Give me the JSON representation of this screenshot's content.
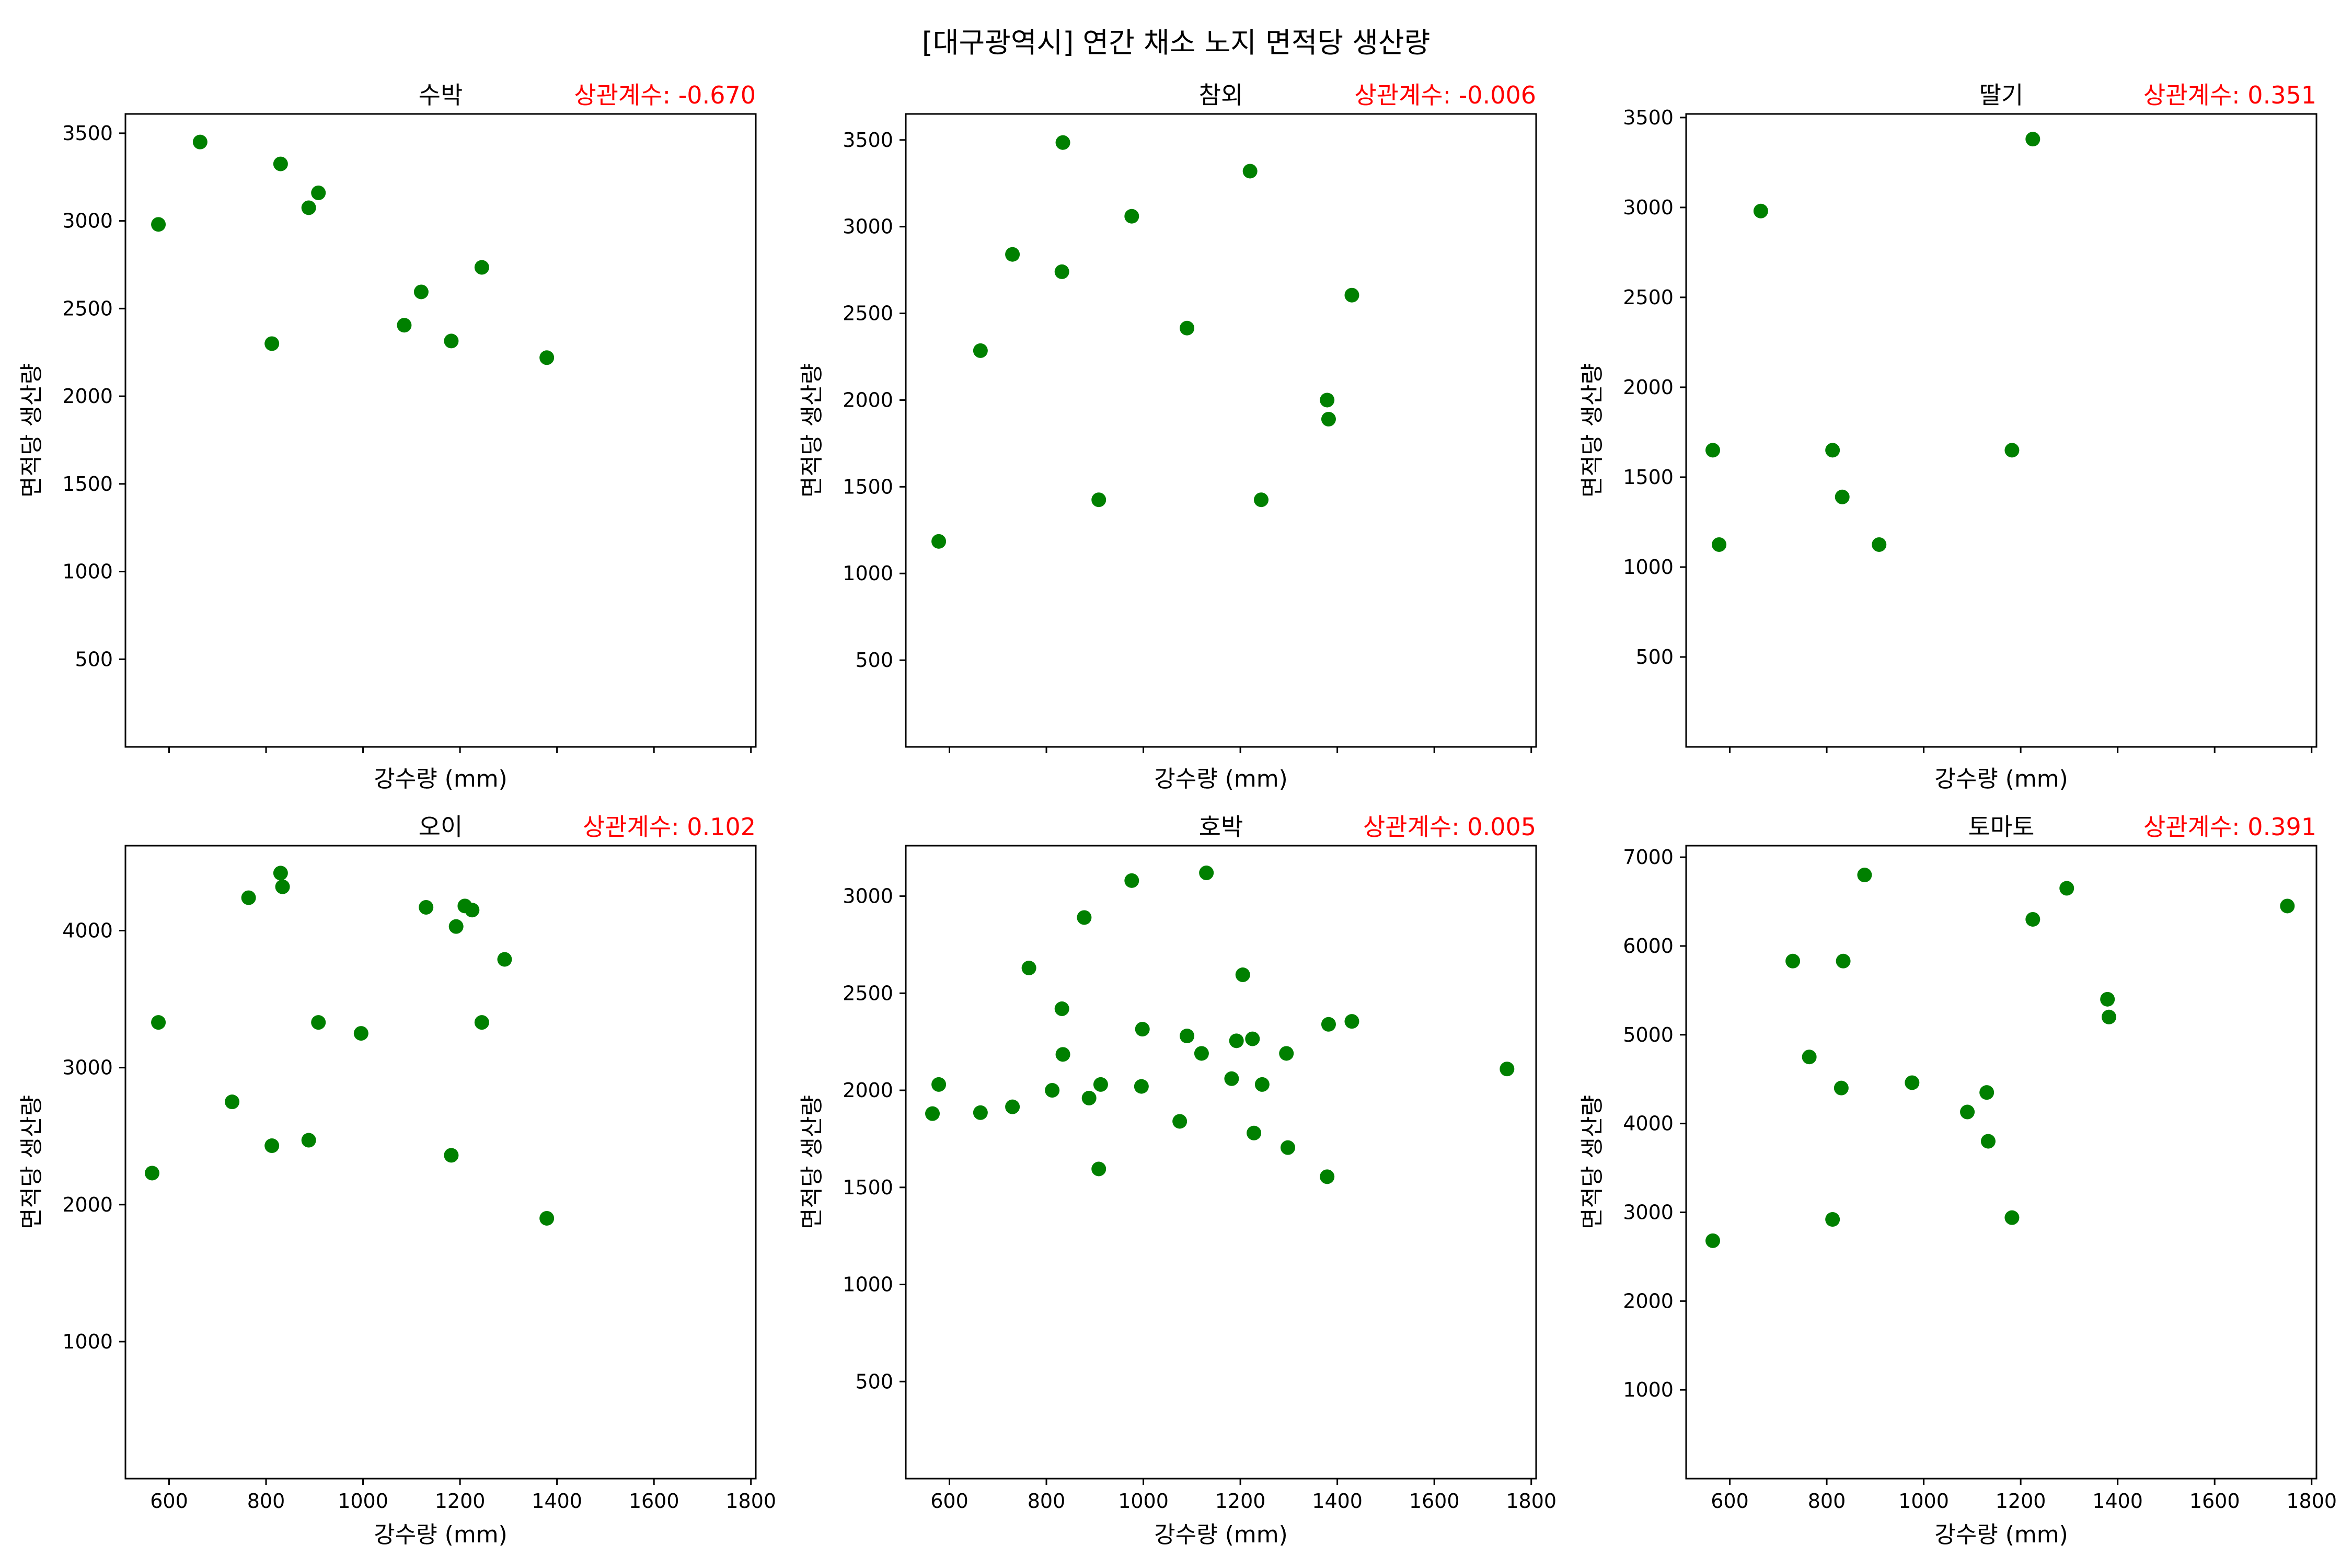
{
  "suptitle": "[대구광역시] 연간 채소 노지 면적당 생산량",
  "chart_data": [
    {
      "type": "scatter",
      "title": "수박",
      "annotation": "상관계수: -0.670",
      "xlabel": "강수량 (mm)",
      "ylabel": "면적당 생산량",
      "xlim": [
        510,
        1810
      ],
      "ylim": [
        0,
        3610
      ],
      "xticks": [
        600,
        800,
        1000,
        1200,
        1400,
        1600,
        1800
      ],
      "yticks": [
        500,
        1000,
        1500,
        2000,
        2500,
        3000,
        3500
      ],
      "show_xtick_labels": false,
      "marker_color": "#008000",
      "points": [
        [
          578,
          2980
        ],
        [
          664,
          3450
        ],
        [
          812,
          2300
        ],
        [
          830,
          3325
        ],
        [
          888,
          3075
        ],
        [
          908,
          3160
        ],
        [
          1085,
          2405
        ],
        [
          1120,
          2595
        ],
        [
          1182,
          2315
        ],
        [
          1245,
          2735
        ],
        [
          1379,
          2220
        ]
      ]
    },
    {
      "type": "scatter",
      "title": "참외",
      "annotation": "상관계수: -0.006",
      "xlabel": "강수량 (mm)",
      "ylabel": "면적당 생산량",
      "xlim": [
        510,
        1810
      ],
      "ylim": [
        0,
        3650
      ],
      "xticks": [
        600,
        800,
        1000,
        1200,
        1400,
        1600,
        1800
      ],
      "yticks": [
        500,
        1000,
        1500,
        2000,
        2500,
        3000,
        3500
      ],
      "show_xtick_labels": false,
      "marker_color": "#008000",
      "points": [
        [
          578,
          1185
        ],
        [
          664,
          2285
        ],
        [
          730,
          2840
        ],
        [
          832,
          2740
        ],
        [
          834,
          3485
        ],
        [
          908,
          1425
        ],
        [
          976,
          3060
        ],
        [
          1090,
          2415
        ],
        [
          1220,
          3320
        ],
        [
          1243,
          1425
        ],
        [
          1379,
          2000
        ],
        [
          1382,
          1890
        ],
        [
          1430,
          2605
        ]
      ]
    },
    {
      "type": "scatter",
      "title": "딸기",
      "annotation": "상관계수: 0.351",
      "xlabel": "강수량 (mm)",
      "ylabel": "면적당 생산량",
      "xlim": [
        510,
        1810
      ],
      "ylim": [
        0,
        3520
      ],
      "xticks": [
        600,
        800,
        1000,
        1200,
        1400,
        1600,
        1800
      ],
      "yticks": [
        500,
        1000,
        1500,
        2000,
        2500,
        3000,
        3500
      ],
      "show_xtick_labels": false,
      "marker_color": "#008000",
      "points": [
        [
          565,
          1650
        ],
        [
          578,
          1125
        ],
        [
          664,
          2980
        ],
        [
          812,
          1650
        ],
        [
          832,
          1390
        ],
        [
          908,
          1125
        ],
        [
          1182,
          1650
        ],
        [
          1225,
          3380
        ]
      ]
    },
    {
      "type": "scatter",
      "title": "오이",
      "annotation": "상관계수: 0.102",
      "xlabel": "강수량 (mm)",
      "ylabel": "면적당 생산량",
      "xlim": [
        510,
        1810
      ],
      "ylim": [
        0,
        4620
      ],
      "xticks": [
        600,
        800,
        1000,
        1200,
        1400,
        1600,
        1800
      ],
      "yticks": [
        1000,
        2000,
        3000,
        4000
      ],
      "show_xtick_labels": true,
      "marker_color": "#008000",
      "points": [
        [
          565,
          2230
        ],
        [
          578,
          3330
        ],
        [
          730,
          2750
        ],
        [
          764,
          4240
        ],
        [
          812,
          2430
        ],
        [
          830,
          4420
        ],
        [
          834,
          4320
        ],
        [
          888,
          2470
        ],
        [
          908,
          3330
        ],
        [
          996,
          3250
        ],
        [
          1130,
          4170
        ],
        [
          1182,
          2360
        ],
        [
          1192,
          4030
        ],
        [
          1210,
          4180
        ],
        [
          1225,
          4150
        ],
        [
          1245,
          3330
        ],
        [
          1292,
          3790
        ],
        [
          1379,
          1900
        ]
      ]
    },
    {
      "type": "scatter",
      "title": "호박",
      "annotation": "상관계수: 0.005",
      "xlabel": "강수량 (mm)",
      "ylabel": "면적당 생산량",
      "xlim": [
        510,
        1810
      ],
      "ylim": [
        0,
        3260
      ],
      "xticks": [
        600,
        800,
        1000,
        1200,
        1400,
        1600,
        1800
      ],
      "yticks": [
        500,
        1000,
        1500,
        2000,
        2500,
        3000
      ],
      "show_xtick_labels": true,
      "marker_color": "#008000",
      "points": [
        [
          565,
          1880
        ],
        [
          578,
          2030
        ],
        [
          664,
          1885
        ],
        [
          730,
          1915
        ],
        [
          764,
          2630
        ],
        [
          812,
          2000
        ],
        [
          832,
          2420
        ],
        [
          834,
          2185
        ],
        [
          878,
          2890
        ],
        [
          888,
          1960
        ],
        [
          908,
          1595
        ],
        [
          912,
          2030
        ],
        [
          976,
          3080
        ],
        [
          996,
          2020
        ],
        [
          998,
          2315
        ],
        [
          1075,
          1840
        ],
        [
          1090,
          2280
        ],
        [
          1120,
          2190
        ],
        [
          1130,
          3120
        ],
        [
          1182,
          2060
        ],
        [
          1192,
          2255
        ],
        [
          1205,
          2595
        ],
        [
          1225,
          2265
        ],
        [
          1228,
          1780
        ],
        [
          1245,
          2030
        ],
        [
          1295,
          2190
        ],
        [
          1298,
          1705
        ],
        [
          1379,
          1555
        ],
        [
          1382,
          2340
        ],
        [
          1430,
          2355
        ],
        [
          1750,
          2110
        ]
      ]
    },
    {
      "type": "scatter",
      "title": "토마토",
      "annotation": "상관계수: 0.391",
      "xlabel": "강수량 (mm)",
      "ylabel": "면적당 생산량",
      "xlim": [
        510,
        1810
      ],
      "ylim": [
        0,
        7130
      ],
      "xticks": [
        600,
        800,
        1000,
        1200,
        1400,
        1600,
        1800
      ],
      "yticks": [
        1000,
        2000,
        3000,
        4000,
        5000,
        6000,
        7000
      ],
      "show_xtick_labels": true,
      "marker_color": "#008000",
      "points": [
        [
          565,
          2680
        ],
        [
          730,
          5830
        ],
        [
          764,
          4750
        ],
        [
          812,
          2920
        ],
        [
          830,
          4400
        ],
        [
          834,
          5830
        ],
        [
          878,
          6800
        ],
        [
          976,
          4460
        ],
        [
          1090,
          4130
        ],
        [
          1130,
          4350
        ],
        [
          1133,
          3800
        ],
        [
          1182,
          2940
        ],
        [
          1225,
          6300
        ],
        [
          1295,
          6650
        ],
        [
          1379,
          5400
        ],
        [
          1382,
          5200
        ],
        [
          1750,
          6450
        ]
      ]
    }
  ]
}
